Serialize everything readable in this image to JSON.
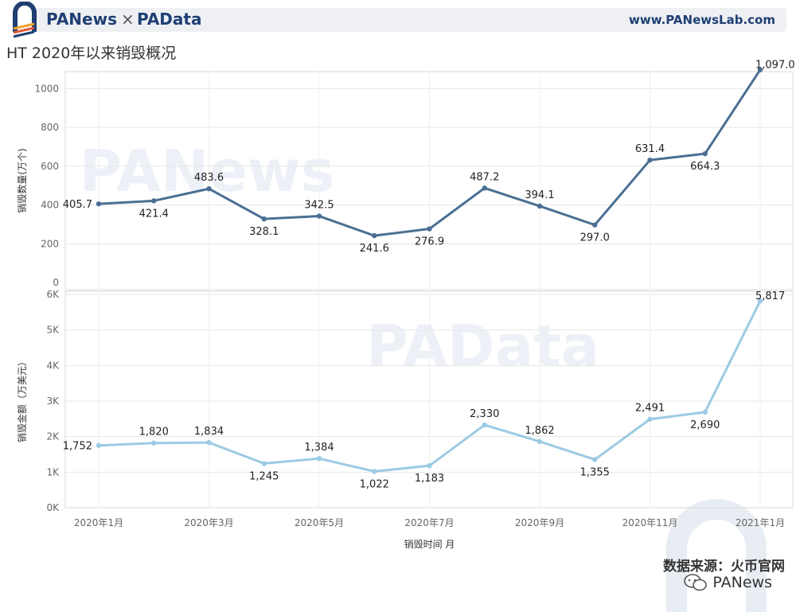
{
  "header": {
    "brand_left": "PANews",
    "separator": "×",
    "brand_right": "PAData",
    "site_url": "www.PANewsLab.com",
    "logo_icon": "panews-logo-icon"
  },
  "title": "HT 2020年以来销毁概况",
  "watermarks": {
    "top": "PANews",
    "bottom": "PAData"
  },
  "source": "数据来源：火币官网",
  "wechat": {
    "icon": "wechat-icon",
    "name": "PANews"
  },
  "colors": {
    "series1": "#4a6f93",
    "series2": "#9ccbe3",
    "brand": "#1f3f73",
    "grid": "#e6e6e6"
  },
  "chart_data": [
    {
      "type": "line",
      "x": [
        "2020年1月",
        "2020年2月",
        "2020年3月",
        "2020年4月",
        "2020年5月",
        "2020年6月",
        "2020年7月",
        "2020年8月",
        "2020年9月",
        "2020年10月",
        "2020年11月",
        "2020年12月",
        "2021年1月"
      ],
      "series": [
        {
          "values": [
            405.7,
            421.4,
            483.6,
            328.1,
            342.5,
            241.6,
            276.9,
            487.2,
            394.1,
            297.0,
            631.4,
            664.3,
            1097.0
          ]
        }
      ],
      "data_labels": [
        "405.7",
        "421.4",
        "483.6",
        "328.1",
        "342.5",
        "241.6",
        "276.9",
        "487.2",
        "394.1",
        "297.0",
        "631.4",
        "664.3",
        "1,097.0"
      ],
      "ylabel": "销毁数量(万个)",
      "yticks": [
        0,
        200,
        400,
        600,
        800,
        1000
      ],
      "ytick_labels": [
        "0",
        "200",
        "400",
        "600",
        "800",
        "1000"
      ],
      "ylim": [
        0,
        1100
      ],
      "grid": true
    },
    {
      "type": "line",
      "x": [
        "2020年1月",
        "2020年2月",
        "2020年3月",
        "2020年4月",
        "2020年5月",
        "2020年6月",
        "2020年7月",
        "2020年8月",
        "2020年9月",
        "2020年10月",
        "2020年11月",
        "2020年12月",
        "2021年1月"
      ],
      "series": [
        {
          "values": [
            1752,
            1820,
            1834,
            1245,
            1384,
            1022,
            1183,
            2330,
            1862,
            1355,
            2491,
            2690,
            5817
          ]
        }
      ],
      "data_labels": [
        "1,752",
        "1,820",
        "1,834",
        "1,245",
        "1,384",
        "1,022",
        "1,183",
        "2,330",
        "1,862",
        "1,355",
        "2,491",
        "2,690",
        "5,817"
      ],
      "ylabel": "销毁金额（万美元）",
      "yticks": [
        0,
        1000,
        2000,
        3000,
        4000,
        5000,
        6000
      ],
      "ytick_labels": [
        "0K",
        "1K",
        "2K",
        "3K",
        "4K",
        "5K",
        "6K"
      ],
      "ylim": [
        0,
        6000
      ],
      "grid": true,
      "xtick_labels": [
        "2020年1月",
        "2020年3月",
        "2020年5月",
        "2020年7月",
        "2020年9月",
        "2020年11月",
        "2021年1月"
      ],
      "xlabel": "销毁时间 月"
    }
  ]
}
